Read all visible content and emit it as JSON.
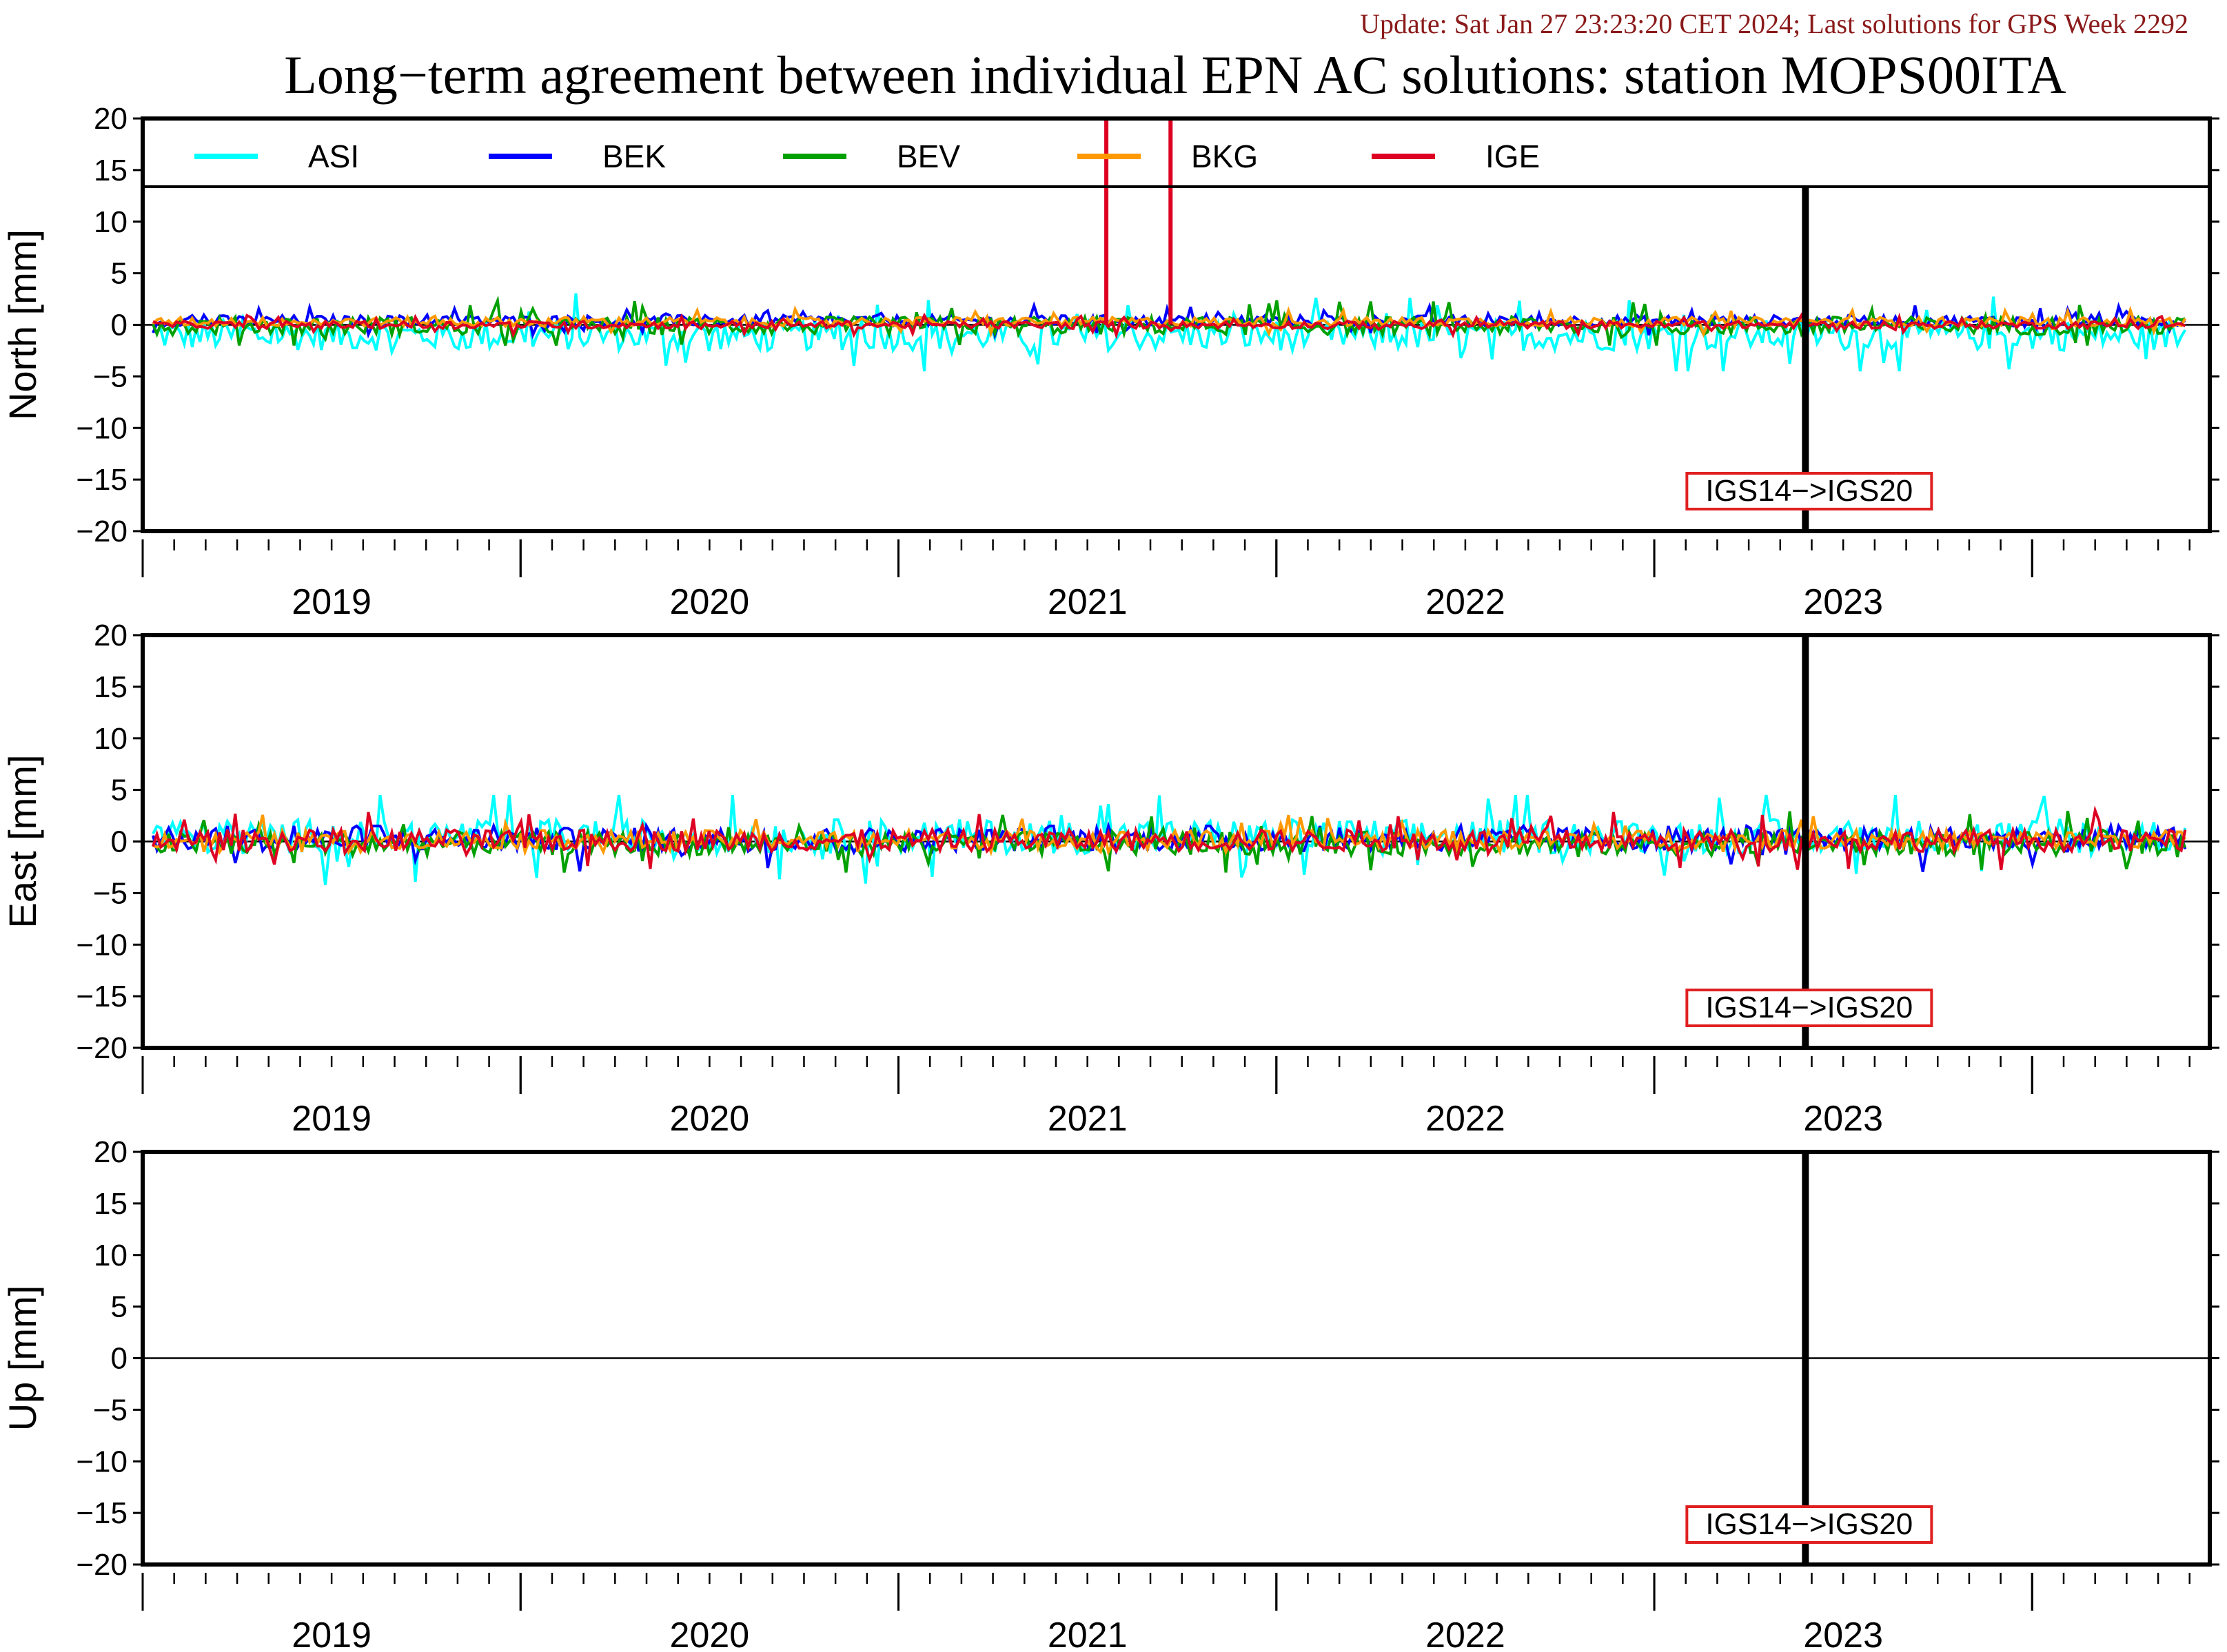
{
  "update_text": "Update: Sat Jan 27 23:23:20 CET 2024; Last solutions for GPS Week 2292",
  "title": "Long−term agreement between individual EPN AC solutions: station MOPS00ITA",
  "chart_data": [
    {
      "type": "line",
      "panel": "north",
      "ylabel": "North [mm]",
      "ylim": [
        -20,
        20
      ],
      "yticks": [
        20,
        15,
        10,
        5,
        0,
        -5,
        -10,
        -15,
        -20
      ],
      "ytick_labels": [
        "20",
        "15",
        "10",
        "5",
        "0",
        "−5",
        "−10",
        "−15",
        "−20"
      ],
      "xlim": [
        2018.5,
        2023.97
      ],
      "year_labels": [
        "2019",
        "2020",
        "2021",
        "2022",
        "2023"
      ],
      "legend_position": "top",
      "annotation": "IGS14−>IGS20",
      "frame_change_at": 2022.9,
      "series": [
        {
          "name": "ASI",
          "color": "#00ffff",
          "y_range": [
            -4.5,
            4.0
          ],
          "mean": -1.0
        },
        {
          "name": "BEK",
          "color": "#0000ff",
          "y_range": [
            -1.0,
            2.0
          ],
          "mean": 0.4
        },
        {
          "name": "BEV",
          "color": "#00a000",
          "y_range": [
            -2.0,
            3.0
          ],
          "mean": -0.1
        },
        {
          "name": "BKG",
          "color": "#ff9900",
          "y_range": [
            -1.0,
            1.5
          ],
          "mean": 0.3
        },
        {
          "name": "IGE",
          "color": "#dd0022",
          "y_range": [
            -1.0,
            1.0
          ],
          "mean": 0.0,
          "spikes": [
            [
              2021.05,
              20
            ],
            [
              2021.22,
              20
            ]
          ]
        }
      ]
    },
    {
      "type": "line",
      "panel": "east",
      "ylabel": "East [mm]",
      "ylim": [
        -20,
        20
      ],
      "yticks": [
        20,
        15,
        10,
        5,
        0,
        -5,
        -10,
        -15,
        -20
      ],
      "ytick_labels": [
        "20",
        "15",
        "10",
        "5",
        "0",
        "−5",
        "−10",
        "−15",
        "−20"
      ],
      "xlim": [
        2018.5,
        2023.97
      ],
      "year_labels": [
        "2019",
        "2020",
        "2021",
        "2022",
        "2023"
      ],
      "annotation": "IGS14−>IGS20",
      "frame_change_at": 2022.9,
      "series": [
        {
          "name": "ASI",
          "color": "#00ffff",
          "y_range": [
            -5.0,
            4.5
          ],
          "mean": 0.5
        },
        {
          "name": "BEK",
          "color": "#0000ff",
          "y_range": [
            -5.0,
            1.5
          ],
          "mean": 0.2
        },
        {
          "name": "BEV",
          "color": "#00a000",
          "y_range": [
            -3.0,
            3.5
          ],
          "mean": -0.2
        },
        {
          "name": "BKG",
          "color": "#ff9900",
          "y_range": [
            -1.0,
            4.0
          ],
          "mean": 0.2
        },
        {
          "name": "IGE",
          "color": "#dd0022",
          "y_range": [
            -3.0,
            3.0
          ],
          "mean": 0.1
        }
      ]
    },
    {
      "type": "line",
      "panel": "up",
      "ylabel": "Up [mm]",
      "ylim": [
        -20,
        20
      ],
      "yticks": [
        20,
        15,
        10,
        5,
        0,
        -5,
        -10,
        -15,
        -20
      ],
      "ytick_labels": [
        "20",
        "15",
        "10",
        "5",
        "0",
        "−5",
        "−10",
        "−15",
        "−20"
      ],
      "xlim": [
        2018.5,
        2023.97
      ],
      "year_labels": [
        "2019",
        "2020",
        "2021",
        "2022",
        "2023"
      ],
      "annotation": "IGS14−>IGS20",
      "frame_change_at": 2022.9,
      "series": []
    }
  ]
}
